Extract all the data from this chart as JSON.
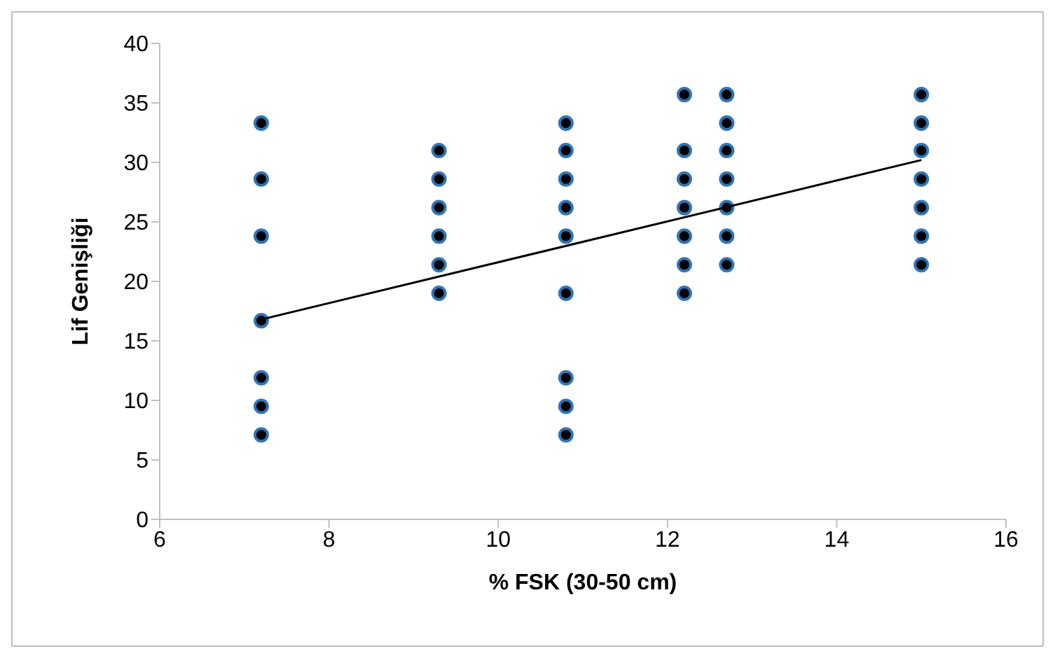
{
  "chart_data": {
    "type": "scatter",
    "xlabel": "%  FSK (30-50 cm)",
    "ylabel": "Lif   Genişliği",
    "xlim": [
      6,
      16
    ],
    "xticks": [
      6,
      8,
      10,
      12,
      14,
      16
    ],
    "ylim": [
      0,
      40
    ],
    "yticks": [
      0,
      5,
      10,
      15,
      20,
      25,
      30,
      35,
      40
    ],
    "grid": false,
    "legend": false,
    "marker": "circle",
    "series": [
      {
        "type": "scatter",
        "color": "#000000",
        "x": [
          7.2,
          7.2,
          7.2,
          7.2,
          7.2,
          7.2,
          7.2,
          9.3,
          9.3,
          9.3,
          9.3,
          9.3,
          9.3,
          10.8,
          10.8,
          10.8,
          10.8,
          10.8,
          10.8,
          10.8,
          10.8,
          10.8,
          12.2,
          12.2,
          12.2,
          12.2,
          12.2,
          12.2,
          12.2,
          12.7,
          12.7,
          12.7,
          12.7,
          12.7,
          12.7,
          12.7,
          15.0,
          15.0,
          15.0,
          15.0,
          15.0,
          15.0,
          15.0
        ],
        "values": [
          33.3,
          28.6,
          23.8,
          16.7,
          11.9,
          9.5,
          7.1,
          31.0,
          28.6,
          26.2,
          23.8,
          21.4,
          19.0,
          33.3,
          31.0,
          28.6,
          26.2,
          23.8,
          19.0,
          11.9,
          9.5,
          7.1,
          35.7,
          31.0,
          28.6,
          26.2,
          23.8,
          21.4,
          19.0,
          35.7,
          33.3,
          31.0,
          28.6,
          26.2,
          23.8,
          21.4,
          35.7,
          33.3,
          31.0,
          28.6,
          26.2,
          23.8,
          21.4
        ]
      },
      {
        "type": "line",
        "color": "#000000",
        "marker": "none",
        "line_style": "solid",
        "x": [
          7.2,
          15.0
        ],
        "values": [
          16.8,
          30.2
        ]
      }
    ]
  }
}
